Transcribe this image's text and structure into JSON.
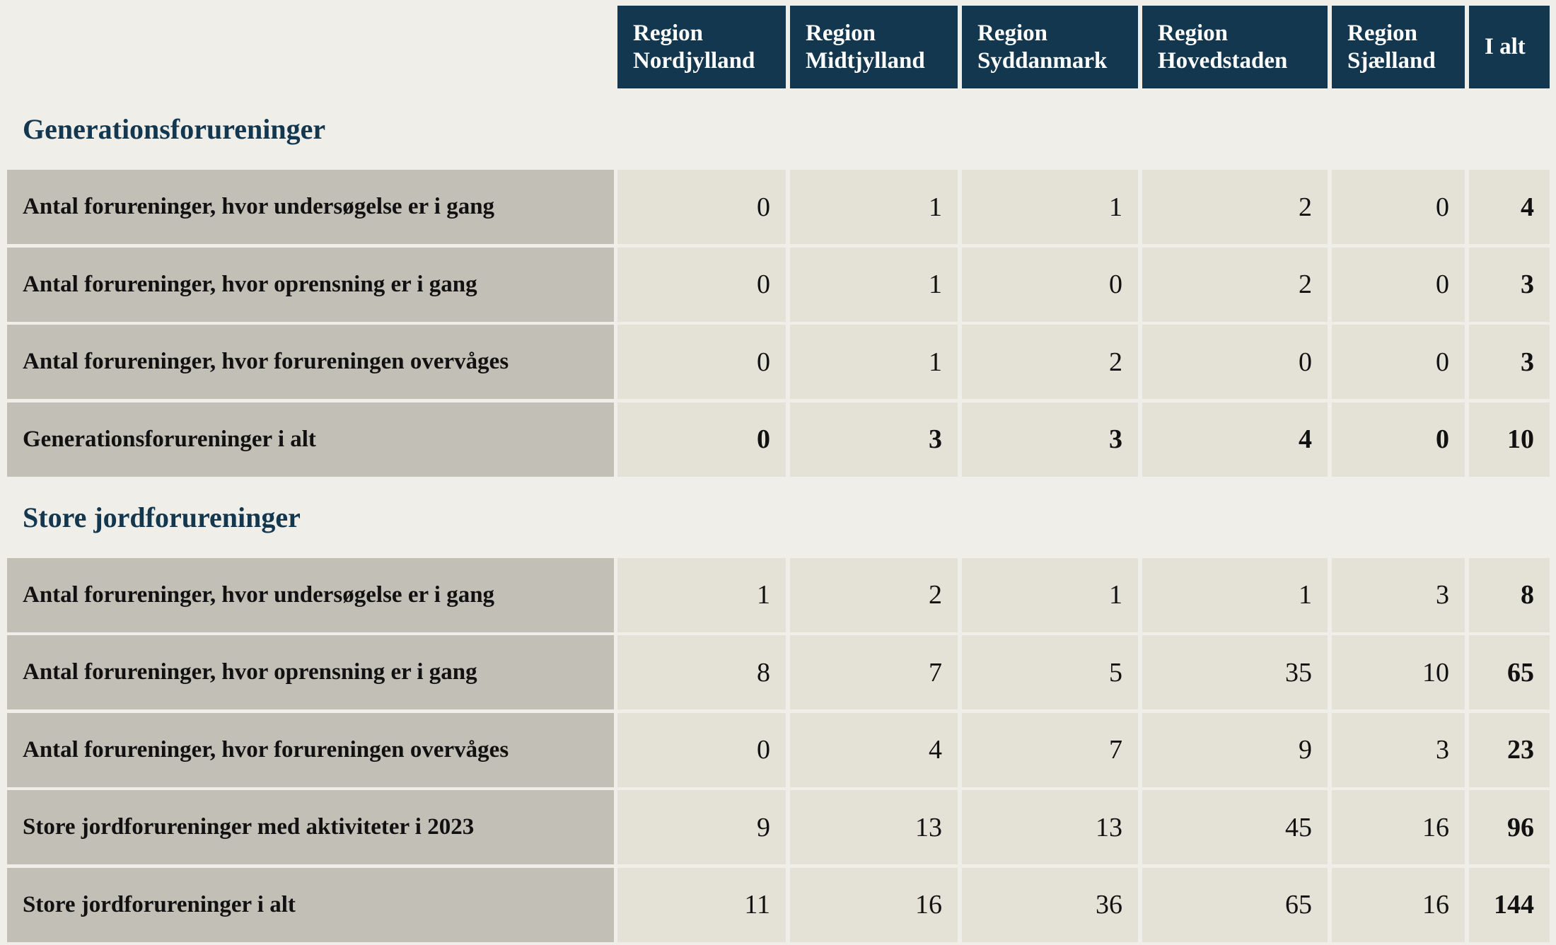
{
  "table": {
    "headers": [
      "Region\nNordjylland",
      "Region\nMidtjylland",
      "Region\nSyddanmark",
      "Region\nHovedstaden",
      "Region\nSjælland",
      "I alt"
    ],
    "sections": [
      {
        "title": "Generationsforureninger",
        "rows": [
          {
            "label": "Antal forureninger, hvor undersøgelse er i gang",
            "values": [
              0,
              1,
              1,
              2,
              0,
              4
            ]
          },
          {
            "label": "Antal forureninger, hvor oprensning er i gang",
            "values": [
              0,
              1,
              0,
              2,
              0,
              3
            ]
          },
          {
            "label": "Antal forureninger, hvor forureningen overvåges",
            "values": [
              0,
              1,
              2,
              0,
              0,
              3
            ]
          },
          {
            "label": "Generationsforureninger i alt",
            "values": [
              0,
              3,
              3,
              4,
              0,
              10
            ],
            "bold": true
          }
        ]
      },
      {
        "title": "Store jordforureninger",
        "rows": [
          {
            "label": "Antal forureninger, hvor undersøgelse er i gang",
            "values": [
              1,
              2,
              1,
              1,
              3,
              8
            ]
          },
          {
            "label": "Antal forureninger, hvor oprensning er i gang",
            "values": [
              8,
              7,
              5,
              35,
              10,
              65
            ]
          },
          {
            "label": "Antal forureninger, hvor forureningen overvåges",
            "values": [
              0,
              4,
              7,
              9,
              3,
              23
            ]
          },
          {
            "label": "Store jordforureninger med aktiviteter i 2023",
            "values": [
              9,
              13,
              13,
              45,
              16,
              96
            ]
          },
          {
            "label": "Store jordforureninger i alt",
            "values": [
              11,
              16,
              36,
              65,
              16,
              144
            ]
          }
        ]
      }
    ]
  }
}
